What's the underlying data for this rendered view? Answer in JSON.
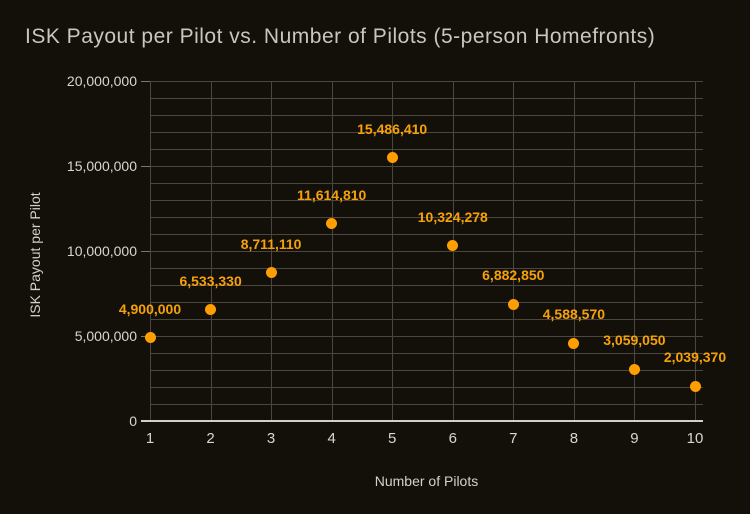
{
  "chart_data": {
    "type": "scatter",
    "title": "ISK Payout per Pilot vs. Number of Pilots (5-person Homefronts)",
    "xlabel": "Number of Pilots",
    "ylabel": "ISK Payout per Pilot",
    "x": [
      1,
      2,
      3,
      4,
      5,
      6,
      7,
      8,
      9,
      10
    ],
    "values": [
      4900000,
      6533330,
      8711110,
      11614810,
      15486410,
      10324278,
      6882850,
      4588570,
      3059050,
      2039370
    ],
    "point_labels": [
      "4,900,000",
      "6,533,330",
      "8,711,110",
      "11,614,810",
      "15,486,410",
      "10,324,278",
      "6,882,850",
      "4,588,570",
      "3,059,050",
      "2,039,370"
    ],
    "x_tick_labels": [
      "1",
      "2",
      "3",
      "4",
      "5",
      "6",
      "7",
      "8",
      "9",
      "10"
    ],
    "y_ticks": [
      {
        "value": 0,
        "label": "0"
      },
      {
        "value": 5000000,
        "label": "5,000,000"
      },
      {
        "value": 10000000,
        "label": "10,000,000"
      },
      {
        "value": 15000000,
        "label": "15,000,000"
      },
      {
        "value": 20000000,
        "label": "20,000,000"
      }
    ],
    "ylim": [
      0,
      20000000
    ],
    "y_minor_grid_step": 1000000,
    "grid_on": true,
    "legend_position": "none",
    "colors": {
      "background": "#131009",
      "gridline": "#4b473f",
      "axis_baseline": "#d2cfc8",
      "tick_text": "#d9d6d0",
      "title_text": "#c9c5bf",
      "point": "#ff9e00",
      "point_label": "#f7a108"
    }
  }
}
